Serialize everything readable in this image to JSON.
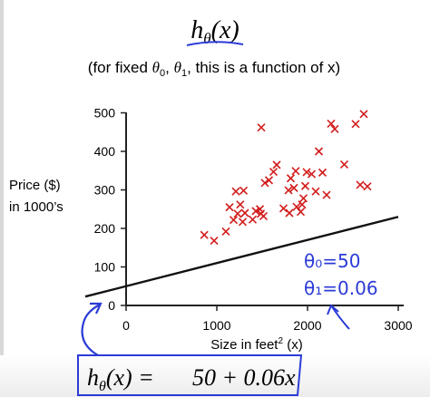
{
  "header": {
    "title": "h_θ(x)",
    "subtitle": "(for fixed θ0, θ1, this is a function of x)"
  },
  "colors": {
    "points": "#d21c1c",
    "fit_line": "#111111",
    "ink": "#2b3bd6",
    "axis": "#222222"
  },
  "chart_data": {
    "type": "scatter",
    "title": "",
    "xlabel": "Size in feet² (x)",
    "ylabel": "Price ($) in 1000's",
    "xlim": [
      -450,
      3000
    ],
    "ylim": [
      0,
      500
    ],
    "x_ticks": [
      "0",
      "1000",
      "2000",
      "3000"
    ],
    "y_ticks": [
      "0",
      "100",
      "200",
      "300",
      "400",
      "500"
    ],
    "grid": false,
    "legend": "none",
    "series": [
      {
        "marker": "x",
        "points": [
          [
            862,
            183
          ],
          [
            970,
            168
          ],
          [
            1100,
            192
          ],
          [
            1140,
            255
          ],
          [
            1185,
            222
          ],
          [
            1210,
            296
          ],
          [
            1230,
            238
          ],
          [
            1258,
            262
          ],
          [
            1285,
            217
          ],
          [
            1295,
            298
          ],
          [
            1310,
            240
          ],
          [
            1395,
            223
          ],
          [
            1430,
            245
          ],
          [
            1475,
            250
          ],
          [
            1485,
            238
          ],
          [
            1490,
            462
          ],
          [
            1515,
            232
          ],
          [
            1530,
            318
          ],
          [
            1575,
            325
          ],
          [
            1625,
            347
          ],
          [
            1660,
            365
          ],
          [
            1735,
            252
          ],
          [
            1790,
            299
          ],
          [
            1800,
            240
          ],
          [
            1815,
            330
          ],
          [
            1850,
            305
          ],
          [
            1870,
            349
          ],
          [
            1880,
            256
          ],
          [
            1925,
            243
          ],
          [
            1940,
            262
          ],
          [
            1955,
            278
          ],
          [
            1975,
            310
          ],
          [
            1990,
            346
          ],
          [
            2045,
            341
          ],
          [
            2090,
            296
          ],
          [
            2125,
            400
          ],
          [
            2165,
            345
          ],
          [
            2210,
            287
          ],
          [
            2260,
            472
          ],
          [
            2300,
            458
          ],
          [
            2405,
            366
          ],
          [
            2530,
            471
          ],
          [
            2580,
            313
          ],
          [
            2620,
            497
          ],
          [
            2660,
            309
          ]
        ]
      }
    ],
    "fit_line": {
      "theta0": 50,
      "theta1": 0.06
    },
    "annotations": [
      "θ0 = 50",
      "θ1 = 0.06"
    ]
  },
  "annotations": {
    "theta0": "θ₀=50",
    "theta1": "θ₁=0.06"
  },
  "formula": {
    "lhs": "h_θ(x) =",
    "rhs": "50 + 0.06x"
  }
}
